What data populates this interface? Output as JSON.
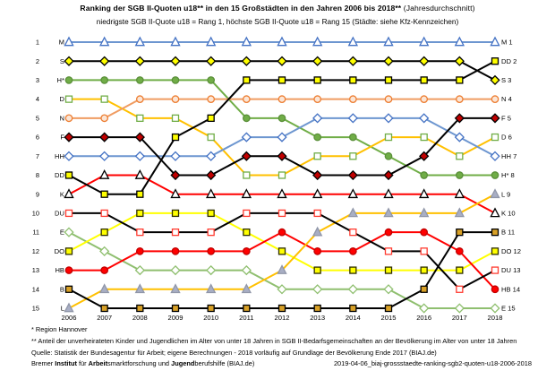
{
  "title": {
    "bold": "Ranking der SGB II-Quoten u18** in den 15 Großstädten in den Jahren 2006 bis 2018**",
    "normal": " (Jahresdurchschnitt)"
  },
  "subtitle": "niedrigste SGB II-Quote u18 = Rang 1, höchste SGB II-Quote u18 = Rang 15 (Städte: siehe Kfz-Kennzeichen)",
  "footnotes": {
    "line1": "*  Region Hannover",
    "line2": "** Anteil der unverheirateten Kinder und Jugendlichen im Alter von unter 18 Jahren in SGB II-Bedarfsgemeinschaften an der Bevölkerung  im Alter von unter 18 Jahren",
    "line3": "Quelle: Statistik der Bundesagentur  für Arbeit; eigene Berechnungen - 2018 vorläufig auf Grundlage der Bevölkerung Ende 2017 (BIAJ.de)",
    "credit_segments": [
      {
        "text": "Bremer ",
        "bold": false
      },
      {
        "text": "Institut",
        "bold": true
      },
      {
        "text": " für ",
        "bold": false
      },
      {
        "text": "Arbeit",
        "bold": true
      },
      {
        "text": "smarktforschung  und ",
        "bold": false
      },
      {
        "text": "Jugend",
        "bold": true
      },
      {
        "text": "berufshilfe  (BIAJ.de)",
        "bold": false
      }
    ],
    "file_id": "2019-04-06_biaj-grossstaedte-ranking-sgb2-quoten-u18-2006-2018"
  },
  "chart_data": {
    "type": "line",
    "subtype": "bump-ranking",
    "x": [
      2006,
      2007,
      2008,
      2009,
      2010,
      2011,
      2012,
      2013,
      2014,
      2015,
      2016,
      2017,
      2018
    ],
    "rank_range": [
      1,
      15
    ],
    "grid": false,
    "legend": "city codes at both line ends (left: rank 2006, right: rank 2018)",
    "series": [
      {
        "code": "M",
        "right_label": "M 1",
        "marker": "triangle",
        "line_color": "#6d96d0",
        "marker_fill": "#ffffff",
        "marker_stroke": "#4472c4",
        "ranks": [
          1,
          1,
          1,
          1,
          1,
          1,
          1,
          1,
          1,
          1,
          1,
          1,
          1
        ]
      },
      {
        "code": "S",
        "right_label": "S 3",
        "marker": "diamond",
        "line_color": "#000000",
        "marker_fill": "#ffff00",
        "marker_stroke": "#000000",
        "ranks": [
          2,
          2,
          2,
          2,
          2,
          2,
          2,
          2,
          2,
          2,
          2,
          2,
          3
        ]
      },
      {
        "code": "H*",
        "right_label": "H* 8",
        "marker": "circle",
        "line_color": "#70ad47",
        "marker_fill": "#70ad47",
        "marker_stroke": "#5a8f39",
        "ranks": [
          3,
          3,
          3,
          3,
          3,
          5,
          5,
          6,
          6,
          7,
          8,
          8,
          8
        ]
      },
      {
        "code": "D",
        "right_label": "D 6",
        "marker": "square",
        "line_color": "#ffc000",
        "marker_fill": "#ffffff",
        "marker_stroke": "#70ad47",
        "ranks": [
          4,
          4,
          5,
          5,
          6,
          8,
          8,
          7,
          7,
          6,
          6,
          7,
          6
        ]
      },
      {
        "code": "N",
        "right_label": "N 4",
        "marker": "circle",
        "line_color": "#f09c62",
        "marker_fill": "#fbe5d5",
        "marker_stroke": "#ed7d31",
        "ranks": [
          5,
          5,
          4,
          4,
          4,
          4,
          4,
          4,
          4,
          4,
          4,
          4,
          4
        ]
      },
      {
        "code": "F",
        "right_label": "F 5",
        "marker": "diamond",
        "line_color": "#000000",
        "marker_fill": "#c00000",
        "marker_stroke": "#000000",
        "ranks": [
          6,
          6,
          6,
          8,
          8,
          7,
          7,
          8,
          8,
          8,
          7,
          5,
          5
        ]
      },
      {
        "code": "HH",
        "right_label": "HH 7",
        "marker": "diamond",
        "line_color": "#6d96d0",
        "marker_fill": "#ffffff",
        "marker_stroke": "#4472c4",
        "ranks": [
          7,
          7,
          7,
          7,
          7,
          6,
          6,
          5,
          5,
          5,
          5,
          6,
          7
        ]
      },
      {
        "code": "DD",
        "right_label": "DD 2",
        "marker": "square",
        "line_color": "#000000",
        "marker_fill": "#ffff00",
        "marker_stroke": "#000000",
        "ranks": [
          8,
          9,
          9,
          6,
          5,
          3,
          3,
          3,
          3,
          3,
          3,
          3,
          2
        ]
      },
      {
        "code": "K",
        "right_label": "K 10",
        "marker": "triangle",
        "line_color": "#ff0000",
        "marker_fill": "#ffffff",
        "marker_stroke": "#000000",
        "ranks": [
          9,
          8,
          8,
          9,
          9,
          9,
          9,
          9,
          9,
          9,
          9,
          9,
          10
        ]
      },
      {
        "code": "DU",
        "right_label": "DU 13",
        "marker": "square",
        "line_color": "#000000",
        "marker_fill": "#ffffff",
        "marker_stroke": "#ff3b30",
        "ranks": [
          10,
          10,
          11,
          11,
          11,
          10,
          10,
          10,
          11,
          12,
          12,
          14,
          13
        ]
      },
      {
        "code": "E",
        "right_label": "E 15",
        "marker": "diamond",
        "line_color": "#8fbf6f",
        "marker_fill": "#ffffff",
        "marker_stroke": "#8fbf6f",
        "ranks": [
          11,
          12,
          13,
          13,
          13,
          13,
          14,
          14,
          14,
          14,
          15,
          15,
          15
        ]
      },
      {
        "code": "DO",
        "right_label": "DO 12",
        "marker": "square",
        "line_color": "#ffff00",
        "marker_fill": "#ffff00",
        "marker_stroke": "#2f2f00",
        "ranks": [
          12,
          11,
          10,
          10,
          10,
          11,
          12,
          13,
          13,
          13,
          13,
          13,
          12
        ]
      },
      {
        "code": "HB",
        "right_label": "HB 14",
        "marker": "circle",
        "line_color": "#ff0000",
        "marker_fill": "#ff0000",
        "marker_stroke": "#c00000",
        "ranks": [
          13,
          13,
          12,
          12,
          12,
          12,
          11,
          12,
          12,
          11,
          11,
          12,
          14
        ]
      },
      {
        "code": "B",
        "right_label": "B 11",
        "marker": "square",
        "line_color": "#000000",
        "marker_fill": "#d9a127",
        "marker_stroke": "#000000",
        "ranks": [
          14,
          15,
          15,
          15,
          15,
          15,
          15,
          15,
          15,
          15,
          14,
          11,
          11
        ]
      },
      {
        "code": "L",
        "right_label": "L 9",
        "marker": "triangle",
        "line_color": "#ffc000",
        "marker_fill": "#a8aec4",
        "marker_stroke": "#9096a8",
        "ranks": [
          15,
          14,
          14,
          14,
          14,
          14,
          13,
          11,
          10,
          10,
          10,
          10,
          9
        ]
      }
    ]
  }
}
